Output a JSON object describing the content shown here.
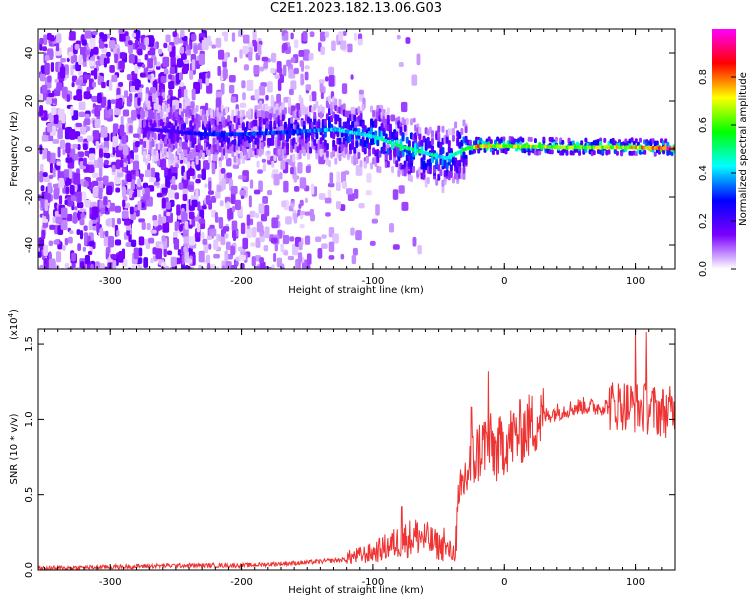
{
  "title": "C2E1.2023.182.13.06.G03",
  "chart_data": [
    {
      "type": "heatmap",
      "xlabel": "Height of straight line (km)",
      "ylabel": "Frequency (Hz)",
      "xlim": [
        -355,
        130
      ],
      "ylim": [
        -50,
        50
      ],
      "xticks": [
        -300,
        -200,
        -100,
        0,
        100
      ],
      "yticks": [
        -40,
        -20,
        0,
        20,
        40
      ],
      "colorbar": {
        "label": "Normalized spectral amplitude",
        "range": [
          0.0,
          1.0
        ],
        "ticks": [
          "0.0",
          "0.2",
          "0.4",
          "0.6",
          "0.8"
        ],
        "colors": [
          "#ffffff",
          "#7a00ff",
          "#0000ff",
          "#00ffff",
          "#00ff00",
          "#ffff00",
          "#ff0000",
          "#ff00ff"
        ]
      },
      "ridge": {
        "x": [
          -270,
          -230,
          -200,
          -160,
          -130,
          -100,
          -80,
          -60,
          -45,
          -30,
          -20,
          0,
          50,
          100,
          130
        ],
        "frequency": [
          8,
          6,
          6,
          7,
          8,
          5,
          1,
          -2,
          -4,
          0,
          1,
          1,
          0.5,
          0.5,
          0
        ],
        "peak_amplitude": [
          0.18,
          0.28,
          0.3,
          0.32,
          0.38,
          0.45,
          0.5,
          0.48,
          0.4,
          0.5,
          0.75,
          0.65,
          0.62,
          0.7,
          0.9
        ]
      }
    },
    {
      "type": "line",
      "xlabel": "Height of straight line (km)",
      "ylabel": "SNR (10 * v/v)",
      "scale_label": "(x10",
      "scale_exponent": "4",
      "scale_suffix": ")",
      "xlim": [
        -355,
        130
      ],
      "ylim": [
        0.0,
        1.6
      ],
      "xticks": [
        -300,
        -200,
        -100,
        0,
        100
      ],
      "yticks": [
        "0.0",
        "0.5",
        "1.0",
        "1.5"
      ],
      "series": [
        {
          "color": "#ee3333",
          "x": [
            -355,
            -300,
            -250,
            -200,
            -150,
            -120,
            -100,
            -85,
            -75,
            -65,
            -55,
            -45,
            -38,
            -32,
            -28,
            -22,
            -15,
            -10,
            -5,
            0,
            10,
            20,
            30,
            40,
            50,
            60,
            70,
            80,
            90,
            100,
            110,
            120,
            130
          ],
          "values": [
            0.01,
            0.02,
            0.03,
            0.03,
            0.05,
            0.07,
            0.1,
            0.15,
            0.18,
            0.2,
            0.16,
            0.12,
            0.1,
            0.55,
            0.65,
            0.75,
            0.85,
            0.82,
            0.78,
            0.85,
            0.9,
            0.96,
            1.02,
            1.05,
            1.07,
            1.09,
            1.08,
            1.09,
            1.1,
            1.08,
            1.07,
            1.05,
            1.05
          ]
        }
      ],
      "spike_peaks": [
        {
          "x": -78,
          "value": 0.42
        },
        {
          "x": -46,
          "value": 0.28
        },
        {
          "x": -25,
          "value": 1.08
        },
        {
          "x": -12,
          "value": 1.32
        },
        {
          "x": 100,
          "value": 1.6
        },
        {
          "x": 108,
          "value": 1.58
        }
      ]
    }
  ]
}
